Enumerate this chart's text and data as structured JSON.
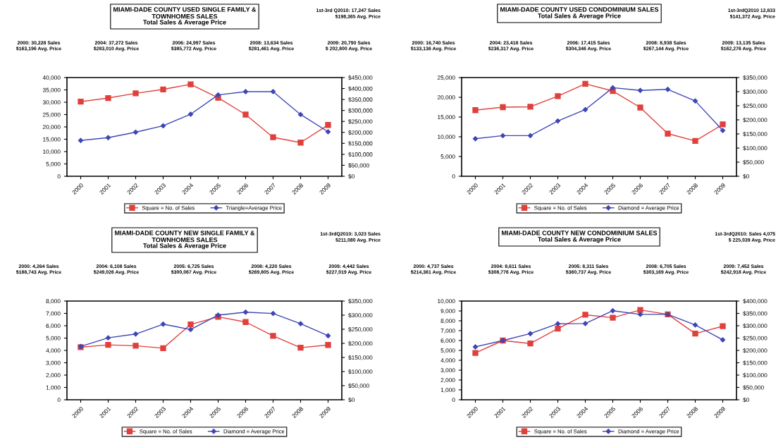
{
  "chart_data": [
    {
      "type": "line",
      "title": "MIAMI-DADE COUNTY USED SINGLE FAMILY &\nTOWNHOMES SALES",
      "subtitle": "Total Sales & Average Price",
      "annotations": [
        "1st-3rd Q2010: 17,247 Sales\n$198,365 Avg. Price",
        "2000: 30,228 Sales\n$163,196 Avg. Price",
        "2004: 37,272 Sales\n$283,010 Avg. Price",
        "2006: 24,997 Sales\n$385,772 Avg. Price",
        "2008: 13,634 Sales\n$281,461 Avg. Price",
        "2009: 20,790 Sales\n$ 202,800 Avg. Price"
      ],
      "categories": [
        "2000",
        "2001",
        "2002",
        "2003",
        "2004",
        "2005",
        "2006",
        "2007",
        "2008",
        "2009"
      ],
      "series": [
        {
          "name": "Square = No. of Sales",
          "color": "#e0403c",
          "marker": "square",
          "values": [
            30228,
            31700,
            33600,
            35200,
            37272,
            31800,
            24997,
            15800,
            13634,
            20790
          ]
        },
        {
          "name": "Triangle=Average Price",
          "color": "#3d46b4",
          "marker": "diamond",
          "axis": "y2",
          "values": [
            163196,
            176000,
            201000,
            230000,
            283010,
            371000,
            385772,
            386000,
            281461,
            202800
          ]
        }
      ],
      "ylim": [
        0,
        40000
      ],
      "yticks": [
        0,
        {
          "value": 5000,
          "label": "5,000"
        },
        {
          "value": 10000,
          "label": "10,000"
        },
        {
          "value": 15000,
          "label": "15,000"
        },
        {
          "value": 20000,
          "label": "20,000"
        },
        {
          "value": 25000,
          "label": "25,000"
        },
        {
          "value": 30000,
          "label": "30,000"
        },
        {
          "value": 35000,
          "label": "35,000"
        },
        {
          "value": 40000,
          "label": "40,000"
        }
      ],
      "y2lim": [
        0,
        450000
      ],
      "y2ticks": [
        {
          "value": 0,
          "label": "$0"
        },
        {
          "value": 50000,
          "label": "$50,000"
        },
        {
          "value": 100000,
          "label": "$100,000"
        },
        {
          "value": 150000,
          "label": "$150,000"
        },
        {
          "value": 200000,
          "label": "$200,000"
        },
        {
          "value": 250000,
          "label": "$250,000"
        },
        {
          "value": 300000,
          "label": "$300,000"
        },
        {
          "value": 350000,
          "label": "$350,000"
        },
        {
          "value": 400000,
          "label": "$400,000"
        },
        {
          "value": 450000,
          "label": "$450,000"
        }
      ],
      "legend": "bottom",
      "grid": false,
      "line_style": "solid"
    },
    {
      "type": "line",
      "title": "MIAMI-DADE COUNTY USED CONDOMINIUM SALES",
      "subtitle": "Total Sales & Average Price",
      "annotations": [
        "1st-3rdQ2010 12,833\n$141,372 Avg. Price",
        "2000: 16,740 Sales\n$133,136 Avg. Price",
        "2004: 23,418 Sales\n$236,317 Avg. Price",
        "2006: 17,415 Sales\n$304,346 Avg. Price",
        "2008: 8,938 Sales\n$267,144 Avg. Price",
        "2009: 13,135 Sales\n$162,276 Avg. Price"
      ],
      "categories": [
        "2000",
        "2001",
        "2002",
        "2003",
        "2004",
        "2005",
        "2006",
        "2007",
        "2008",
        "2009"
      ],
      "series": [
        {
          "name": "Square = No. of Sales",
          "color": "#e0403c",
          "marker": "square",
          "values": [
            16740,
            17500,
            17600,
            20300,
            23418,
            21600,
            17415,
            10800,
            8938,
            13135
          ]
        },
        {
          "name": "Diamond = Average Price",
          "color": "#3d46b4",
          "marker": "diamond",
          "axis": "y2",
          "values": [
            133136,
            144000,
            144000,
            196000,
            236317,
            314000,
            304346,
            308000,
            267144,
            162276
          ]
        }
      ],
      "ylim": [
        0,
        25000
      ],
      "yticks": [
        0,
        {
          "value": 5000,
          "label": "5,000"
        },
        {
          "value": 10000,
          "label": "10,000"
        },
        {
          "value": 15000,
          "label": "15,000"
        },
        {
          "value": 20000,
          "label": "20,000"
        },
        {
          "value": 25000,
          "label": "25,000"
        }
      ],
      "y2lim": [
        0,
        350000
      ],
      "y2ticks": [
        {
          "value": 0,
          "label": "$0"
        },
        {
          "value": 50000,
          "label": "$50,000"
        },
        {
          "value": 100000,
          "label": "$100,000"
        },
        {
          "value": 150000,
          "label": "$150,000"
        },
        {
          "value": 200000,
          "label": "$200,000"
        },
        {
          "value": 250000,
          "label": "$250,000"
        },
        {
          "value": 300000,
          "label": "$300,000"
        },
        {
          "value": 350000,
          "label": "$350,000"
        }
      ],
      "legend": "bottom",
      "grid": false,
      "line_style": "solid"
    },
    {
      "type": "line",
      "title": "MIAMI-DADE COUNTY NEW SINGLE FAMILY &\nTOWNHOMES SALES",
      "subtitle": "Total Sales & Average Price",
      "annotations": [
        "1st-3rdQ2010: 3,023 Sales\n$211,080 Avg. Price",
        "2000: 4,264 Sales\n$188,743 Avg. Price",
        "2004: 6,108 Sales\n$249,026 Avg. Price",
        "2005: 6,725 Sales\n$300,067 Avg. Price",
        "2008: 4,220 Sales\n$269,805 Avg. Price",
        "2009: 4,442 Sales\n$227,019 Avg. Price"
      ],
      "categories": [
        "2000",
        "2001",
        "2002",
        "2003",
        "2004",
        "2005",
        "2006",
        "2007",
        "2008",
        "2009"
      ],
      "series": [
        {
          "name": "Square = No. of Sales",
          "color": "#e0403c",
          "marker": "square",
          "values": [
            4264,
            4450,
            4380,
            4180,
            6108,
            6725,
            6300,
            5180,
            4220,
            4442
          ]
        },
        {
          "name": "Diamond = Average Price",
          "color": "#3d46b4",
          "marker": "diamond",
          "axis": "y2",
          "values": [
            188743,
            219600,
            233000,
            268000,
            249026,
            300067,
            310600,
            306000,
            269805,
            227019
          ]
        }
      ],
      "ylim": [
        0,
        8000
      ],
      "yticks": [
        0,
        {
          "value": 1000,
          "label": "1,000"
        },
        {
          "value": 2000,
          "label": "2,000"
        },
        {
          "value": 3000,
          "label": "3,000"
        },
        {
          "value": 4000,
          "label": "4,000"
        },
        {
          "value": 5000,
          "label": "5,000"
        },
        {
          "value": 6000,
          "label": "6,000"
        },
        {
          "value": 7000,
          "label": "7,000"
        },
        {
          "value": 8000,
          "label": "8,000"
        }
      ],
      "y2lim": [
        0,
        350000
      ],
      "y2ticks": [
        {
          "value": 0,
          "label": "$0"
        },
        {
          "value": 50000,
          "label": "$50,000"
        },
        {
          "value": 100000,
          "label": "$100,000"
        },
        {
          "value": 150000,
          "label": "$150,000"
        },
        {
          "value": 200000,
          "label": "$200,000"
        },
        {
          "value": 250000,
          "label": "$250,000"
        },
        {
          "value": 300000,
          "label": "$300,000"
        },
        {
          "value": 350000,
          "label": "$350,000"
        }
      ],
      "legend": "bottom",
      "grid": false,
      "line_style": "solid"
    },
    {
      "type": "line",
      "title": "MIAMI-DADE COUNTY NEW CONDOMINIUM SALES",
      "subtitle": "Total Sales & Average Price",
      "annotations": [
        "1st-3rdQ2010: Sales 4,075\n$ 225,039 Avg. Price",
        "2000: 4,737 Sales\n$214,361 Avg. Price",
        "2004: 8,611 Sales\n$308,776 Avg. Price",
        "2005: 8,311 Sales\n$360,737 Avg. Price",
        "2008: 6,705 Sales\n$303,169 Avg. Price",
        "2009: 7,452 Sales\n$242,918 Avg. Price"
      ],
      "categories": [
        "2000",
        "2001",
        "2002",
        "2003",
        "2004",
        "2005",
        "2006",
        "2007",
        "2008",
        "2009"
      ],
      "series": [
        {
          "name": "Square = No. of Sales",
          "color": "#e0403c",
          "marker": "square",
          "values": [
            4737,
            6000,
            5700,
            7200,
            8611,
            8311,
            9100,
            8650,
            6705,
            7452
          ]
        },
        {
          "name": "Diamond = Average Price",
          "color": "#3d46b4",
          "marker": "diamond",
          "axis": "y2",
          "values": [
            214361,
            240000,
            268000,
            308000,
            308776,
            360737,
            346000,
            346000,
            303169,
            242918
          ]
        }
      ],
      "ylim": [
        0,
        10000
      ],
      "yticks": [
        0,
        {
          "value": 1000,
          "label": "1,000"
        },
        {
          "value": 2000,
          "label": "2,000"
        },
        {
          "value": 3000,
          "label": "3,000"
        },
        {
          "value": 4000,
          "label": "4,000"
        },
        {
          "value": 5000,
          "label": "5,000"
        },
        {
          "value": 6000,
          "label": "6,000"
        },
        {
          "value": 7000,
          "label": "7,000"
        },
        {
          "value": 8000,
          "label": "8,000"
        },
        {
          "value": 9000,
          "label": "9,000"
        },
        {
          "value": 10000,
          "label": "10,000"
        }
      ],
      "y2lim": [
        0,
        400000
      ],
      "y2ticks": [
        {
          "value": 0,
          "label": "$0"
        },
        {
          "value": 50000,
          "label": "$50,000"
        },
        {
          "value": 100000,
          "label": "$100,000"
        },
        {
          "value": 150000,
          "label": "$150,000"
        },
        {
          "value": 200000,
          "label": "$200,000"
        },
        {
          "value": 250000,
          "label": "$250,000"
        },
        {
          "value": 300000,
          "label": "$300,000"
        },
        {
          "value": 350000,
          "label": "$350,000"
        },
        {
          "value": 400000,
          "label": "$400,000"
        }
      ],
      "legend": "bottom",
      "grid": false,
      "line_style": "solid"
    }
  ]
}
